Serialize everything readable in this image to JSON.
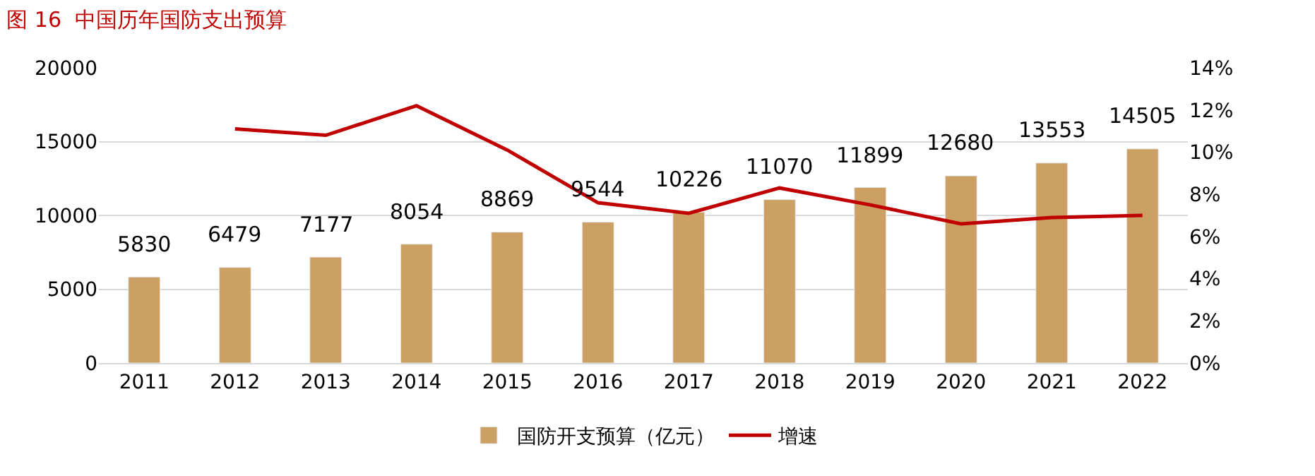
{
  "chart_data": {
    "type": "bar",
    "title": "图 16  中国历年国防支出预算",
    "categories": [
      "2011",
      "2012",
      "2013",
      "2014",
      "2015",
      "2016",
      "2017",
      "2018",
      "2019",
      "2020",
      "2021",
      "2022"
    ],
    "series": [
      {
        "name": "国防开支预算（亿元）",
        "color": "#cc9f62",
        "values": [
          5830,
          6479,
          7177,
          8054,
          8869,
          9544,
          10226,
          11070,
          11899,
          12680,
          13553,
          14505
        ],
        "value_labels": [
          "5830",
          "6479",
          "7177",
          "8054",
          "8869",
          "9544",
          "10226",
          "11070",
          "11899",
          "12680",
          "13553",
          "14505"
        ]
      },
      {
        "name": "增速",
        "type": "line",
        "axis": "y2",
        "color": "#c00000",
        "values": [
          null,
          11.1,
          10.8,
          12.2,
          10.1,
          7.6,
          7.1,
          8.3,
          7.5,
          6.6,
          6.9,
          7.0
        ]
      }
    ],
    "ylim": [
      0,
      20000
    ],
    "yticks": [
      0,
      5000,
      10000,
      15000,
      20000
    ],
    "y2lim": [
      0,
      14
    ],
    "y2ticks": [
      {
        "value": 0,
        "label": "0%"
      },
      {
        "value": 2,
        "label": "2%"
      },
      {
        "value": 4,
        "label": "4%"
      },
      {
        "value": 6,
        "label": "6%"
      },
      {
        "value": 8,
        "label": "8%"
      },
      {
        "value": 10,
        "label": "10%"
      },
      {
        "value": 12,
        "label": "12%"
      },
      {
        "value": 14,
        "label": "14%"
      }
    ],
    "grid": "y",
    "legend": "bottom",
    "marker": "none",
    "line_style": "solid"
  }
}
